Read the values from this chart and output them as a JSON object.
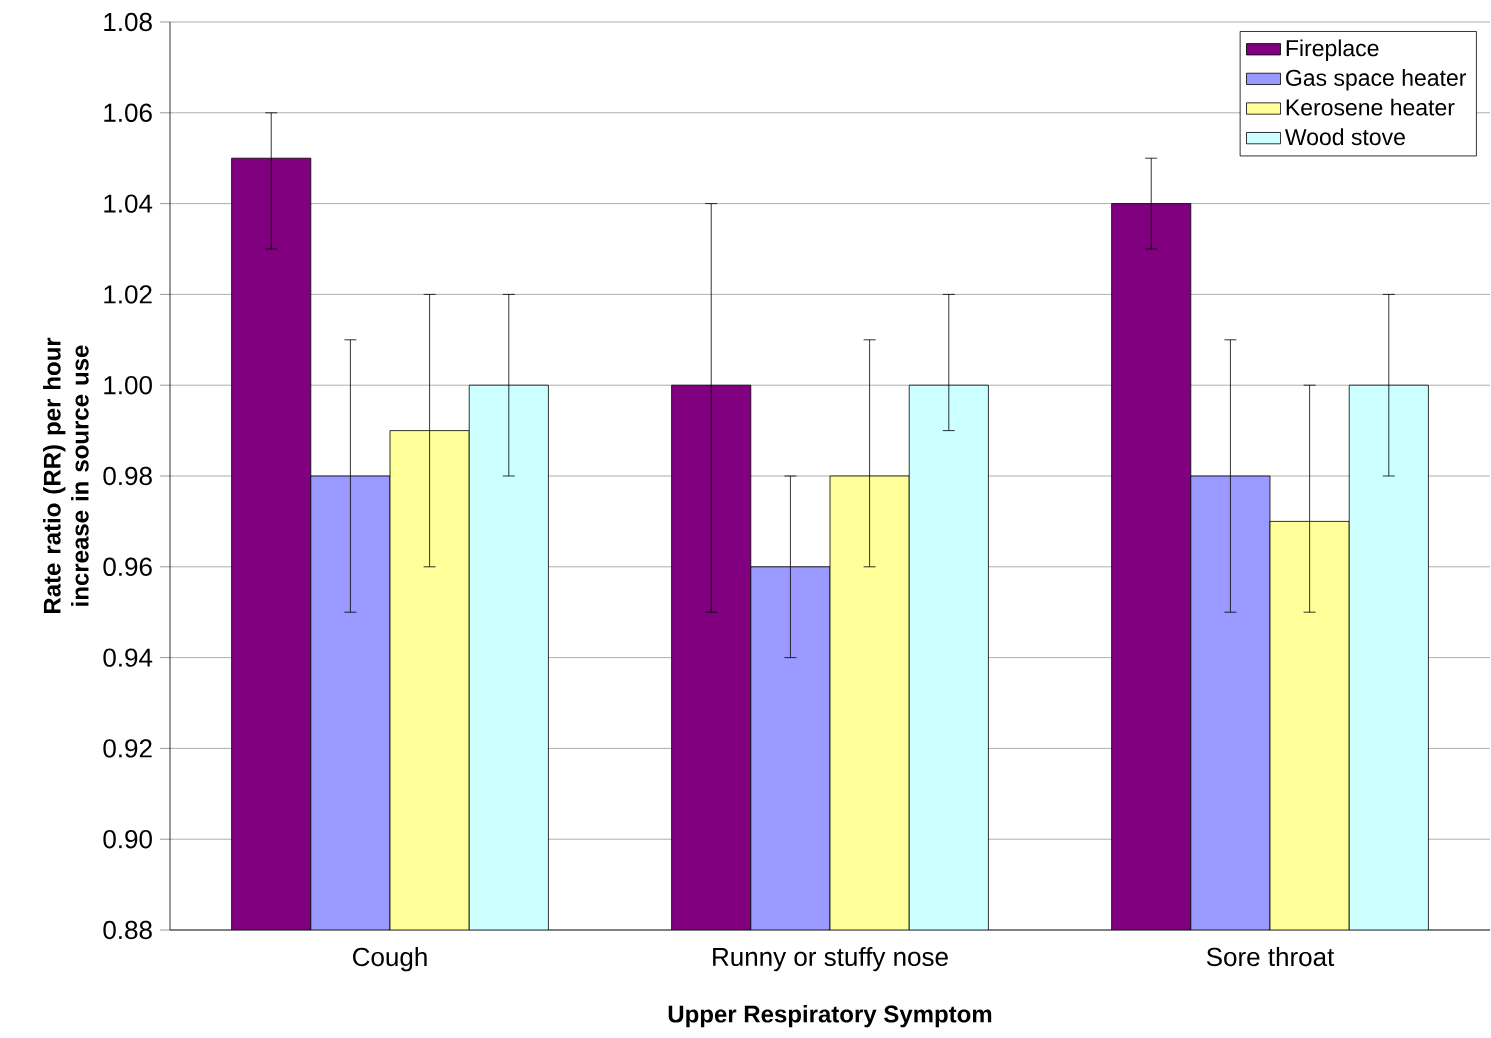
{
  "chart_data": {
    "type": "bar",
    "xlabel": "Upper Respiratory Symptom",
    "ylabel": "Rate ratio (RR) per hour increase in source use",
    "categories": [
      "Cough",
      "Runny or stuffy nose",
      "Sore throat"
    ],
    "series": [
      {
        "name": "Fireplace",
        "color": "#800080",
        "values": [
          1.05,
          1.0,
          1.04
        ],
        "errors": [
          [
            1.03,
            1.06
          ],
          [
            0.95,
            1.04
          ],
          [
            1.03,
            1.05
          ]
        ]
      },
      {
        "name": "Gas space heater",
        "color": "#9999ff",
        "values": [
          0.98,
          0.96,
          0.98
        ],
        "errors": [
          [
            0.95,
            1.01
          ],
          [
            0.94,
            0.98
          ],
          [
            0.95,
            1.01
          ]
        ]
      },
      {
        "name": "Kerosene heater",
        "color": "#ffff99",
        "values": [
          0.99,
          0.98,
          0.97
        ],
        "errors": [
          [
            0.96,
            1.02
          ],
          [
            0.96,
            1.01
          ],
          [
            0.95,
            1.0
          ]
        ]
      },
      {
        "name": "Wood stove",
        "color": "#ccffff",
        "values": [
          1.0,
          1.0,
          1.0
        ],
        "errors": [
          [
            0.98,
            1.02
          ],
          [
            0.99,
            1.02
          ],
          [
            0.98,
            1.02
          ]
        ]
      }
    ],
    "ylim": [
      0.88,
      1.08
    ],
    "yticks": [
      {
        "value": 0.88,
        "label": "0.88"
      },
      {
        "value": 0.9,
        "label": "0.90"
      },
      {
        "value": 0.92,
        "label": "0.92"
      },
      {
        "value": 0.94,
        "label": "0.94"
      },
      {
        "value": 0.96,
        "label": "0.96"
      },
      {
        "value": 0.98,
        "label": "0.98"
      },
      {
        "value": 1.0,
        "label": "1.00"
      },
      {
        "value": 1.02,
        "label": "1.02"
      },
      {
        "value": 1.04,
        "label": "1.04"
      },
      {
        "value": 1.06,
        "label": "1.06"
      },
      {
        "value": 1.08,
        "label": "1.08"
      }
    ],
    "grid": "y",
    "legend": "top right"
  }
}
